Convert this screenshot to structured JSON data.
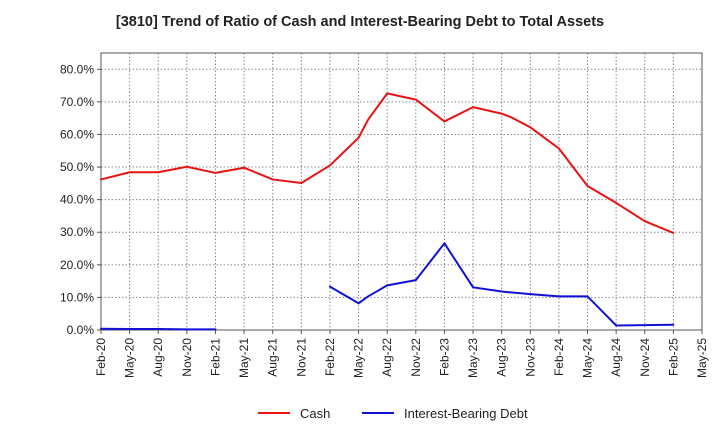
{
  "chart_data": {
    "type": "line",
    "title": "[3810]  Trend of Ratio of Cash and Interest-Bearing Debt to Total Assets",
    "xlabel": "",
    "ylabel": "",
    "ylim": [
      0,
      85
    ],
    "yticks": [
      0,
      10,
      20,
      30,
      40,
      50,
      60,
      70,
      80
    ],
    "ytick_labels": [
      "0.0%",
      "10.0%",
      "20.0%",
      "30.0%",
      "40.0%",
      "50.0%",
      "60.0%",
      "70.0%",
      "80.0%"
    ],
    "x_tick_labels": [
      "Feb-20",
      "May-20",
      "Aug-20",
      "Nov-20",
      "Feb-21",
      "May-21",
      "Aug-21",
      "Nov-21",
      "Feb-22",
      "May-22",
      "Aug-22",
      "Nov-22",
      "Feb-23",
      "May-23",
      "Aug-23",
      "Nov-23",
      "Feb-24",
      "May-24",
      "Aug-24",
      "Nov-24",
      "Feb-25",
      "May-25"
    ],
    "grid": true,
    "legend_position": "bottom",
    "series": [
      {
        "name": "Cash",
        "color": "#e81313",
        "points": [
          [
            0,
            46.2
          ],
          [
            1,
            48.4
          ],
          [
            2,
            48.4
          ],
          [
            3,
            50.1
          ],
          [
            4,
            48.2
          ],
          [
            5,
            49.8
          ],
          [
            6,
            46.2
          ],
          [
            7,
            45.1
          ],
          [
            8,
            50.5
          ],
          [
            9,
            59.0
          ],
          [
            9.33,
            64.5
          ],
          [
            10,
            72.6
          ],
          [
            11,
            70.7
          ],
          [
            12,
            64.0
          ],
          [
            13,
            68.4
          ],
          [
            14,
            66.4
          ],
          [
            14.33,
            65.3
          ],
          [
            15,
            62.2
          ],
          [
            16,
            55.7
          ],
          [
            17,
            44.2
          ],
          [
            18,
            39.0
          ],
          [
            19,
            33.4
          ],
          [
            20,
            29.8
          ]
        ]
      },
      {
        "name": "Interest-Bearing Debt",
        "color": "#1212d6",
        "segments": [
          [
            [
              0,
              0.4
            ],
            [
              1,
              0.3
            ],
            [
              2,
              0.3
            ],
            [
              3,
              0.2
            ],
            [
              4,
              0.2
            ]
          ],
          [
            [
              8,
              13.3
            ],
            [
              9,
              8.2
            ],
            [
              9.33,
              10.3
            ],
            [
              10,
              13.7
            ],
            [
              11,
              15.3
            ],
            [
              12,
              26.6
            ],
            [
              13,
              13.1
            ],
            [
              14,
              11.8
            ],
            [
              15,
              11.0
            ],
            [
              16,
              10.3
            ],
            [
              17,
              10.3
            ],
            [
              18,
              1.4
            ],
            [
              19,
              1.5
            ],
            [
              20,
              1.6
            ]
          ]
        ]
      }
    ]
  }
}
